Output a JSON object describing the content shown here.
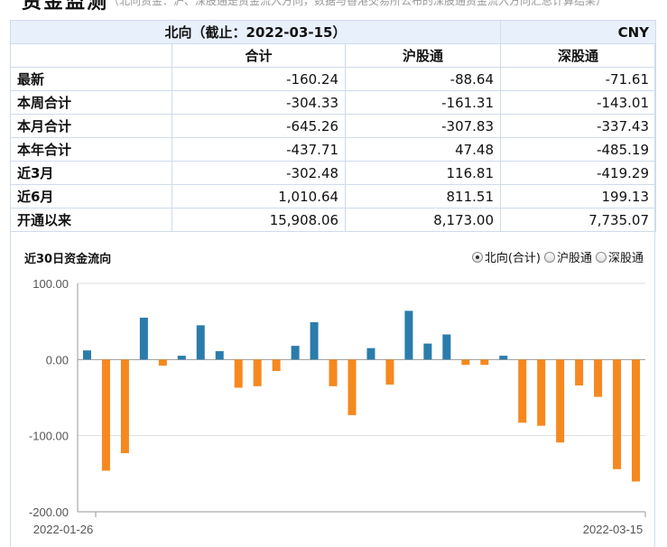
{
  "page": {
    "title": "资金监测",
    "note": "（北向资金：沪、深股通是资金流入方向，数据与香港交易所公布的深股通资金流入方向汇总计算结果）"
  },
  "table": {
    "caption": "北向（截止：2022-03-15）",
    "currency": "CNY",
    "columns": [
      "合计",
      "沪股通",
      "深股通"
    ],
    "rows": [
      {
        "label": "最新",
        "values": [
          "-160.24",
          "-88.64",
          "-71.61"
        ]
      },
      {
        "label": "本周合计",
        "values": [
          "-304.33",
          "-161.31",
          "-143.01"
        ]
      },
      {
        "label": "本月合计",
        "values": [
          "-645.26",
          "-307.83",
          "-337.43"
        ]
      },
      {
        "label": "本年合计",
        "values": [
          "-437.71",
          "47.48",
          "-485.19"
        ]
      },
      {
        "label": "近3月",
        "values": [
          "-302.48",
          "116.81",
          "-419.29"
        ]
      },
      {
        "label": "近6月",
        "values": [
          "1,010.64",
          "811.51",
          "199.13"
        ]
      },
      {
        "label": "开通以来",
        "values": [
          "15,908.06",
          "8,173.00",
          "7,735.07"
        ]
      }
    ]
  },
  "chart_header": {
    "title": "近30日资金流向",
    "options": [
      {
        "label": "北向(合计)",
        "selected": true
      },
      {
        "label": "沪股通",
        "selected": false
      },
      {
        "label": "深股通",
        "selected": false
      }
    ]
  },
  "chart_data": {
    "type": "bar",
    "title": "近30日资金流向",
    "x_start_label": "2022-01-26",
    "x_end_label": "2022-03-15",
    "ylim": [
      -200,
      100
    ],
    "yticks": [
      100,
      0,
      -100,
      -200
    ],
    "ytick_labels": [
      "100.00",
      "0.00",
      "-100.00",
      "-200.00"
    ],
    "grid": true,
    "colors": {
      "positive": "#2a7cab",
      "negative": "#f5891f"
    },
    "values": [
      12,
      -146,
      -123,
      55,
      -8,
      5,
      45,
      11,
      -37,
      -35,
      -15,
      18,
      49,
      -35,
      -73,
      15,
      -33,
      64,
      21,
      33,
      -7,
      -7,
      5,
      -83,
      -87,
      -109,
      -34,
      -49,
      -144,
      -160.24
    ]
  }
}
